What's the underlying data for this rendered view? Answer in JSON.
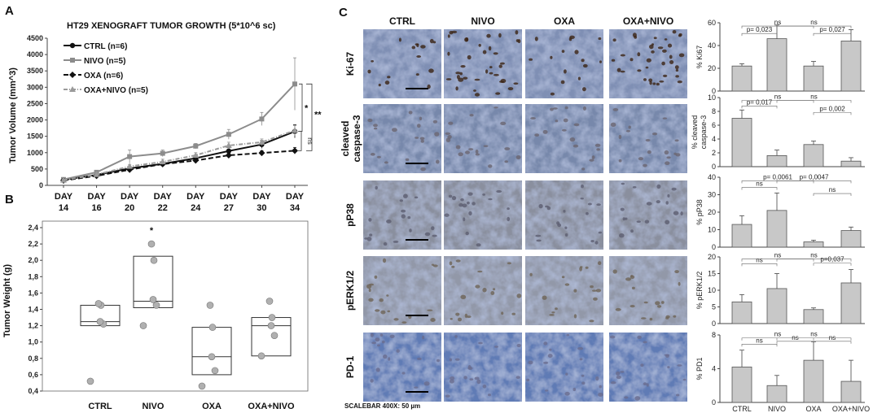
{
  "panels": {
    "a": "A",
    "b": "B",
    "c": "C"
  },
  "colors": {
    "ctrl": "#111111",
    "nivo": "#8c8c8c",
    "oxa": "#111111",
    "oxanivo": "#9a9a9a",
    "bar": "#c8c8c8",
    "dot": "#b0b0b0"
  },
  "chart_data": [
    {
      "type": "line",
      "title": "HT29  XENOGRAFT TUMOR GROWTH (5*10^6 sc)",
      "ylabel": "Tumor Volume (mm^3)",
      "xlabel": "",
      "x": [
        "DAY\n14",
        "DAY\n16",
        "DAY\n20",
        "DAY\n22",
        "DAY\n24",
        "DAY\n27",
        "DAY\n30",
        "DAY\n34"
      ],
      "x_top": [
        "DAY",
        "DAY",
        "DAY",
        "DAY",
        "DAY",
        "DAY",
        "DAY",
        "DAY"
      ],
      "x_bottom": [
        "14",
        "16",
        "20",
        "22",
        "24",
        "27",
        "30",
        "34"
      ],
      "ylim": [
        0,
        4500
      ],
      "yticks": [
        "0",
        "500",
        "1000",
        "1500",
        "2000",
        "2500",
        "3000",
        "3500",
        "4000",
        "4500"
      ],
      "legend_position": "top-left",
      "series": [
        {
          "name": "CTRL (n=6)",
          "values": [
            170,
            320,
            520,
            660,
            830,
            1050,
            1250,
            1650
          ],
          "err": [
            40,
            50,
            60,
            70,
            80,
            100,
            120,
            200
          ]
        },
        {
          "name": "NIVO (n=5)",
          "values": [
            180,
            400,
            880,
            980,
            1200,
            1560,
            2030,
            3100
          ],
          "err": [
            40,
            60,
            200,
            100,
            80,
            150,
            200,
            800
          ]
        },
        {
          "name": "OXA (n=6)",
          "values": [
            150,
            290,
            480,
            650,
            760,
            920,
            990,
            1060
          ],
          "err": [
            30,
            40,
            50,
            50,
            60,
            60,
            70,
            100
          ]
        },
        {
          "name": "OXA+NIVO (n=5)",
          "values": [
            160,
            330,
            580,
            720,
            920,
            1220,
            1320,
            1680
          ],
          "err": [
            30,
            50,
            60,
            80,
            80,
            100,
            100,
            150
          ]
        }
      ],
      "annotations": [
        "*",
        "**",
        "ns"
      ]
    },
    {
      "type": "boxplot",
      "ylabel": "Tumor  Weight (g)",
      "ylim": [
        0.4,
        2.4
      ],
      "yticks": [
        "0,4",
        "0,6",
        "0,8",
        "1,0",
        "1,2",
        "1,4",
        "1,6",
        "1,8",
        "2,0",
        "2,2",
        "2,4"
      ],
      "categories": [
        "CTRL",
        "NIVO",
        "OXA",
        "OXA+NIVO"
      ],
      "boxes": [
        {
          "q1": 1.2,
          "median": 1.25,
          "q3": 1.45,
          "points": [
            0.52,
            1.22,
            1.25,
            1.45,
            1.47
          ]
        },
        {
          "q1": 1.42,
          "median": 1.5,
          "q3": 2.05,
          "points": [
            1.2,
            1.45,
            1.52,
            2.0,
            2.2
          ]
        },
        {
          "q1": 0.6,
          "median": 0.82,
          "q3": 1.18,
          "points": [
            0.46,
            0.65,
            0.82,
            1.18,
            1.45
          ]
        },
        {
          "q1": 0.83,
          "median": 1.2,
          "q3": 1.3,
          "points": [
            0.83,
            1.08,
            1.2,
            1.3,
            1.5
          ]
        }
      ],
      "annotations": [
        "*"
      ]
    },
    {
      "type": "bar",
      "ylabel": "% Ki67",
      "categories": [
        "CTRL",
        "NIVO",
        "OXA",
        "OXA+NIVO"
      ],
      "values": [
        22,
        46,
        22,
        44
      ],
      "err": [
        2,
        12,
        4,
        10
      ],
      "ylim": [
        0,
        60
      ],
      "yticks": [
        "0",
        "20",
        "40",
        "60"
      ],
      "annotations": [
        "p= 0,023",
        "ns",
        "p= 0,027",
        "ns"
      ]
    },
    {
      "type": "bar",
      "ylabel": "% cleaved caspase-3",
      "categories": [
        "CTRL",
        "NIVO",
        "OXA",
        "OXA+NIVO"
      ],
      "values": [
        7,
        1.6,
        3.2,
        0.8
      ],
      "err": [
        1.2,
        0.8,
        0.5,
        0.5
      ],
      "ylim": [
        0,
        10
      ],
      "yticks": [
        "0",
        "2",
        "4",
        "6",
        "8",
        "10"
      ],
      "annotations": [
        "p= 0,017",
        "ns",
        "p= 0,002",
        "ns"
      ]
    },
    {
      "type": "bar",
      "ylabel": "% pP38",
      "categories": [
        "CTRL",
        "NIVO",
        "OXA",
        "OXA+NIVO"
      ],
      "values": [
        13,
        21,
        3,
        9.5
      ],
      "err": [
        5,
        10,
        1,
        2
      ],
      "ylim": [
        0,
        40
      ],
      "yticks": [
        "0",
        "10",
        "20",
        "30",
        "40"
      ],
      "annotations": [
        "ns",
        "p= 0,0061",
        "ns",
        "p= 0,0047"
      ]
    },
    {
      "type": "bar",
      "ylabel": "% pERK1/2",
      "categories": [
        "CTRL",
        "NIVO",
        "OXA",
        "OXA+NIVO"
      ],
      "values": [
        6.5,
        10.5,
        4.2,
        12.2
      ],
      "err": [
        2.2,
        4.5,
        0.5,
        4
      ],
      "ylim": [
        0,
        20
      ],
      "yticks": [
        "0",
        "5",
        "10",
        "15",
        "20"
      ],
      "annotations": [
        "ns",
        "ns",
        "ns",
        "p=0,037"
      ]
    },
    {
      "type": "bar",
      "ylabel": "% PD1",
      "categories": [
        "CTRL",
        "NIVO",
        "OXA",
        "OXA+NIVO"
      ],
      "values": [
        4.2,
        2,
        5,
        2.5
      ],
      "err": [
        2,
        1.2,
        2.2,
        2.5
      ],
      "ylim": [
        0,
        8
      ],
      "yticks": [
        "0",
        "4",
        "8"
      ],
      "annotations": [
        "ns",
        "ns",
        "ns",
        "ns",
        "ns"
      ]
    }
  ],
  "micrographs": {
    "columns": [
      "CTRL",
      "NIVO",
      "OXA",
      "OXA+NIVO"
    ],
    "rows": [
      "Ki-67",
      "cleaved\ncaspase-3",
      "pP38",
      "pERK1/2",
      "PD-1"
    ],
    "row_lines": [
      [
        "Ki-67"
      ],
      [
        "cleaved",
        "caspase-3"
      ],
      [
        "pP38"
      ],
      [
        "pERK1/2"
      ],
      [
        "PD-1"
      ]
    ],
    "scalebar_text": "SCALEBAR 400X: 50 µm"
  },
  "bar_xlabels": [
    "CTRL",
    "NIVO",
    "OXA",
    "OXA+NIVO"
  ]
}
